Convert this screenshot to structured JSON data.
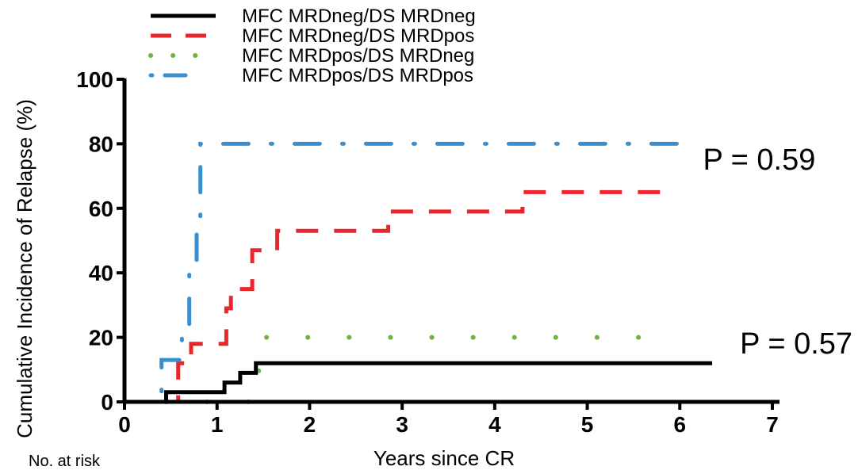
{
  "chart_data": {
    "type": "line",
    "xlabel": "Years since CR",
    "ylabel": "Cumulative Incidence of Relapse (%)",
    "xlim": [
      0,
      7
    ],
    "ylim": [
      0,
      100
    ],
    "xticks": [
      "0",
      "1",
      "2",
      "3",
      "4",
      "5",
      "6",
      "7"
    ],
    "yticks": [
      "0",
      "20",
      "40",
      "60",
      "80",
      "100"
    ],
    "grid": false,
    "legend_position": "top-left",
    "at_risk_label": "No. at risk",
    "series": [
      {
        "name": "MFC MRDneg/DS MRDneg",
        "color": "#000000",
        "style": "solid",
        "x": [
          0,
          0.45,
          0.45,
          1.08,
          1.08,
          1.25,
          1.25,
          1.42,
          1.42,
          6.35
        ],
        "y": [
          0,
          0,
          3,
          3,
          6,
          6,
          9,
          9,
          12,
          12
        ]
      },
      {
        "name": "MFC MRDneg/DS MRDpos",
        "color": "#e8262b",
        "style": "dashed",
        "x": [
          0,
          0.58,
          0.58,
          0.72,
          0.72,
          1.1,
          1.1,
          1.15,
          1.15,
          1.38,
          1.38,
          1.65,
          1.65,
          2.85,
          2.85,
          4.3,
          4.3,
          5.95
        ],
        "y": [
          0,
          0,
          12,
          12,
          18,
          18,
          29,
          29,
          35,
          35,
          47,
          47,
          53,
          53,
          59,
          59,
          65,
          65
        ]
      },
      {
        "name": "MFC MRDpos/DS MRDneg",
        "color": "#6db33f",
        "style": "dotted",
        "x": [
          0,
          0.48,
          0.48,
          1.45,
          1.45,
          5.6
        ],
        "y": [
          0,
          0,
          0,
          0,
          20,
          20
        ]
      },
      {
        "name": "MFC MRDpos/DS MRDpos",
        "color": "#3b8fcf",
        "style": "dashdot",
        "x": [
          0,
          0.4,
          0.4,
          0.62,
          0.62,
          0.7,
          0.7,
          0.78,
          0.78,
          0.82,
          0.82,
          6.0
        ],
        "y": [
          0,
          0,
          13,
          13,
          20,
          20,
          40,
          40,
          54,
          54,
          80,
          80
        ]
      }
    ],
    "annotations": [
      {
        "text": "P = 0.59",
        "x": 6.25,
        "y": 72
      },
      {
        "text": "P = 0.57",
        "x": 6.65,
        "y": 15
      }
    ]
  }
}
